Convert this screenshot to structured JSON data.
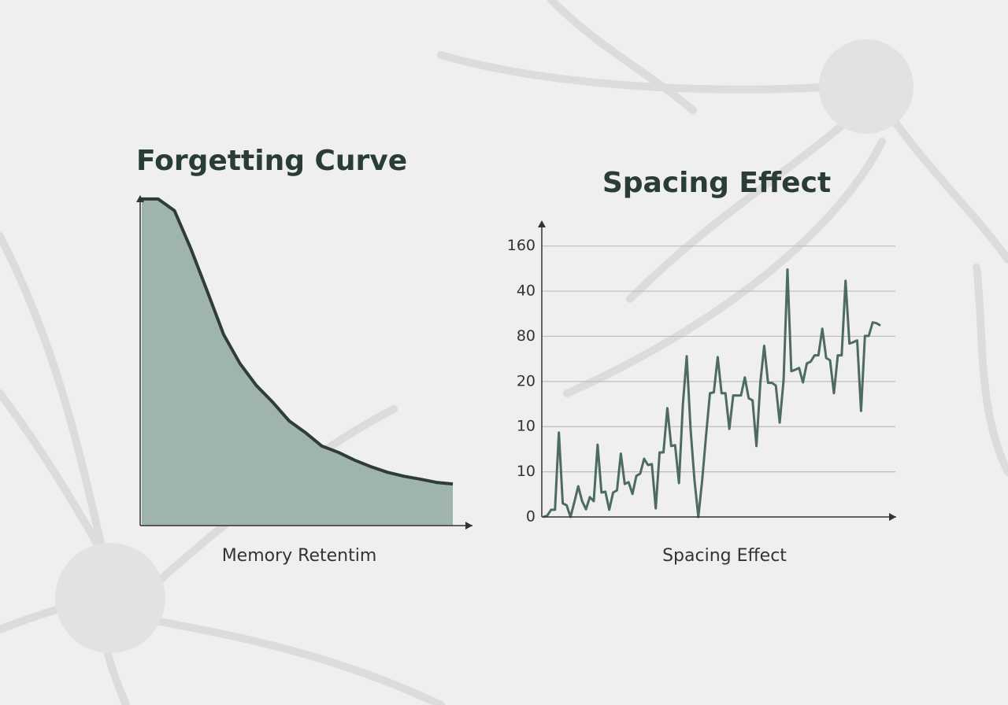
{
  "chart_data": [
    {
      "type": "area",
      "title": "Forgetting Curve",
      "xlabel": "Memory Retentim",
      "values": [
        99.8,
        99.8,
        96.2,
        84.6,
        71.6,
        58.4,
        49.5,
        42.8,
        37.7,
        32.0,
        28.4,
        24.3,
        22.4,
        20.0,
        18.0,
        16.3,
        15.1,
        14.2,
        13.2,
        12.7
      ],
      "ylim": [
        0,
        100
      ],
      "color": "#9fb5ab",
      "line_color": "#2f3d36"
    },
    {
      "type": "line",
      "title": "Spacing Effect",
      "xlabel": "Spacing Effect",
      "values": [
        0,
        0.03,
        0.16,
        0.16,
        1.87,
        0.3,
        0.26,
        0,
        0.33,
        0.68,
        0.35,
        0.17,
        0.44,
        0.35,
        1.6,
        0.54,
        0.56,
        0.16,
        0.54,
        0.59,
        1.4,
        0.73,
        0.77,
        0.51,
        0.91,
        0.96,
        1.29,
        1.15,
        1.17,
        0.19,
        1.43,
        1.43,
        2.41,
        1.57,
        1.59,
        0.75,
        2.48,
        3.56,
        1.94,
        0.82,
        0,
        0.82,
        1.81,
        2.74,
        2.76,
        3.54,
        2.74,
        2.74,
        1.95,
        2.69,
        2.69,
        2.69,
        3.09,
        2.63,
        2.58,
        1.57,
        2.97,
        3.79,
        2.97,
        2.97,
        2.91,
        2.09,
        3.02,
        5.48,
        3.23,
        3.26,
        3.3,
        2.98,
        3.4,
        3.44,
        3.58,
        3.58,
        4.17,
        3.52,
        3.47,
        2.74,
        3.58,
        3.58,
        5.23,
        3.84,
        3.87,
        3.91,
        2.35,
        4.01,
        4.01,
        4.31,
        4.29,
        4.24
      ],
      "ylim": [
        0,
        6.5
      ],
      "yticks": [
        0,
        {
          "value": 1,
          "label": "10"
        },
        {
          "value": 2,
          "label": "10"
        },
        {
          "value": 3,
          "label": "20"
        },
        {
          "value": 4,
          "label": "80"
        },
        {
          "value": 5,
          "label": "40"
        },
        {
          "value": 6,
          "label": "160"
        }
      ],
      "grid": true,
      "color": "#4d6b5f"
    }
  ]
}
